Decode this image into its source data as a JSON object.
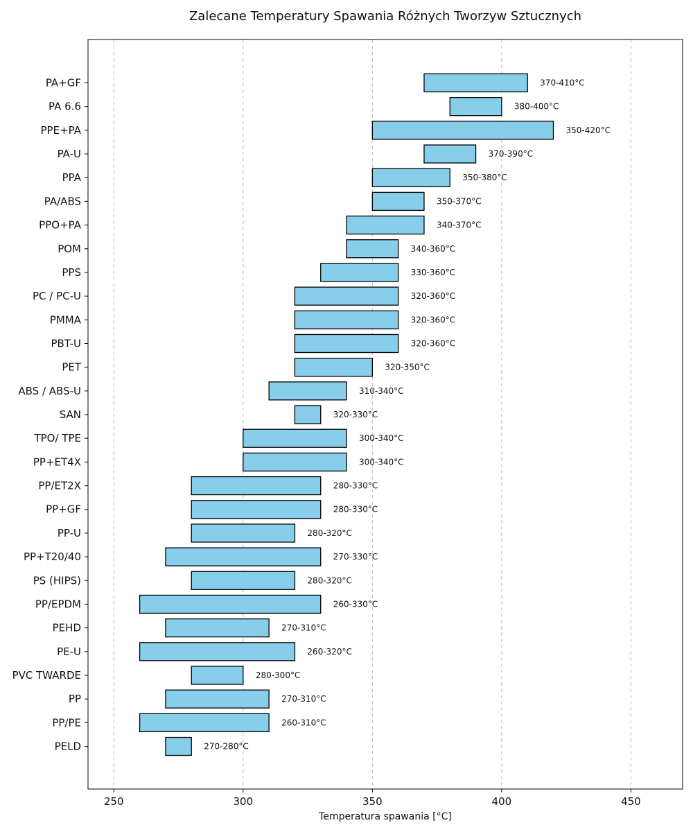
{
  "chart_data": {
    "type": "bar",
    "orientation": "horizontal-range",
    "title": "Zalecane Temperatury Spawania Różnych Tworzyw Sztucznych",
    "xlabel": "Temperatura spawania [°C]",
    "ylabel": "",
    "xlim": [
      240,
      470
    ],
    "xticks": [
      250,
      300,
      350,
      400,
      450
    ],
    "grid": "x-dashed",
    "bar_color": "#87CEEB",
    "edge_color": "#000000",
    "categories": [
      "PA+GF",
      "PA 6.6",
      "PPE+PA",
      "PA-U",
      "PPA",
      "PA/ABS",
      "PPO+PA",
      "POM",
      "PPS",
      "PC / PC-U",
      "PMMA",
      "PBT-U",
      "PET",
      "ABS / ABS-U",
      "SAN",
      "TPO/ TPE",
      "PP+ET4X",
      "PP/ET2X",
      "PP+GF",
      "PP-U",
      "PP+T20/40",
      "PS (HIPS)",
      "PP/EPDM",
      "PEHD",
      "PE-U",
      "PVC TWARDE",
      "PP",
      "PP/PE",
      "PELD"
    ],
    "min": [
      370,
      380,
      350,
      370,
      350,
      350,
      340,
      340,
      330,
      320,
      320,
      320,
      320,
      310,
      320,
      300,
      300,
      280,
      280,
      280,
      270,
      280,
      260,
      270,
      260,
      280,
      270,
      260,
      270
    ],
    "max": [
      410,
      400,
      420,
      390,
      380,
      370,
      370,
      360,
      360,
      360,
      360,
      360,
      350,
      340,
      330,
      340,
      340,
      330,
      330,
      320,
      330,
      320,
      330,
      310,
      320,
      300,
      310,
      310,
      280
    ],
    "labels": [
      "370-410°C",
      "380-400°C",
      "350-420°C",
      "370-390°C",
      "350-380°C",
      "350-370°C",
      "340-370°C",
      "340-360°C",
      "330-360°C",
      "320-360°C",
      "320-360°C",
      "320-360°C",
      "320-350°C",
      "310-340°C",
      "320-330°C",
      "300-340°C",
      "300-340°C",
      "280-330°C",
      "280-330°C",
      "280-320°C",
      "270-330°C",
      "280-320°C",
      "260-330°C",
      "270-310°C",
      "260-320°C",
      "280-300°C",
      "270-310°C",
      "260-310°C",
      "270-280°C"
    ]
  }
}
